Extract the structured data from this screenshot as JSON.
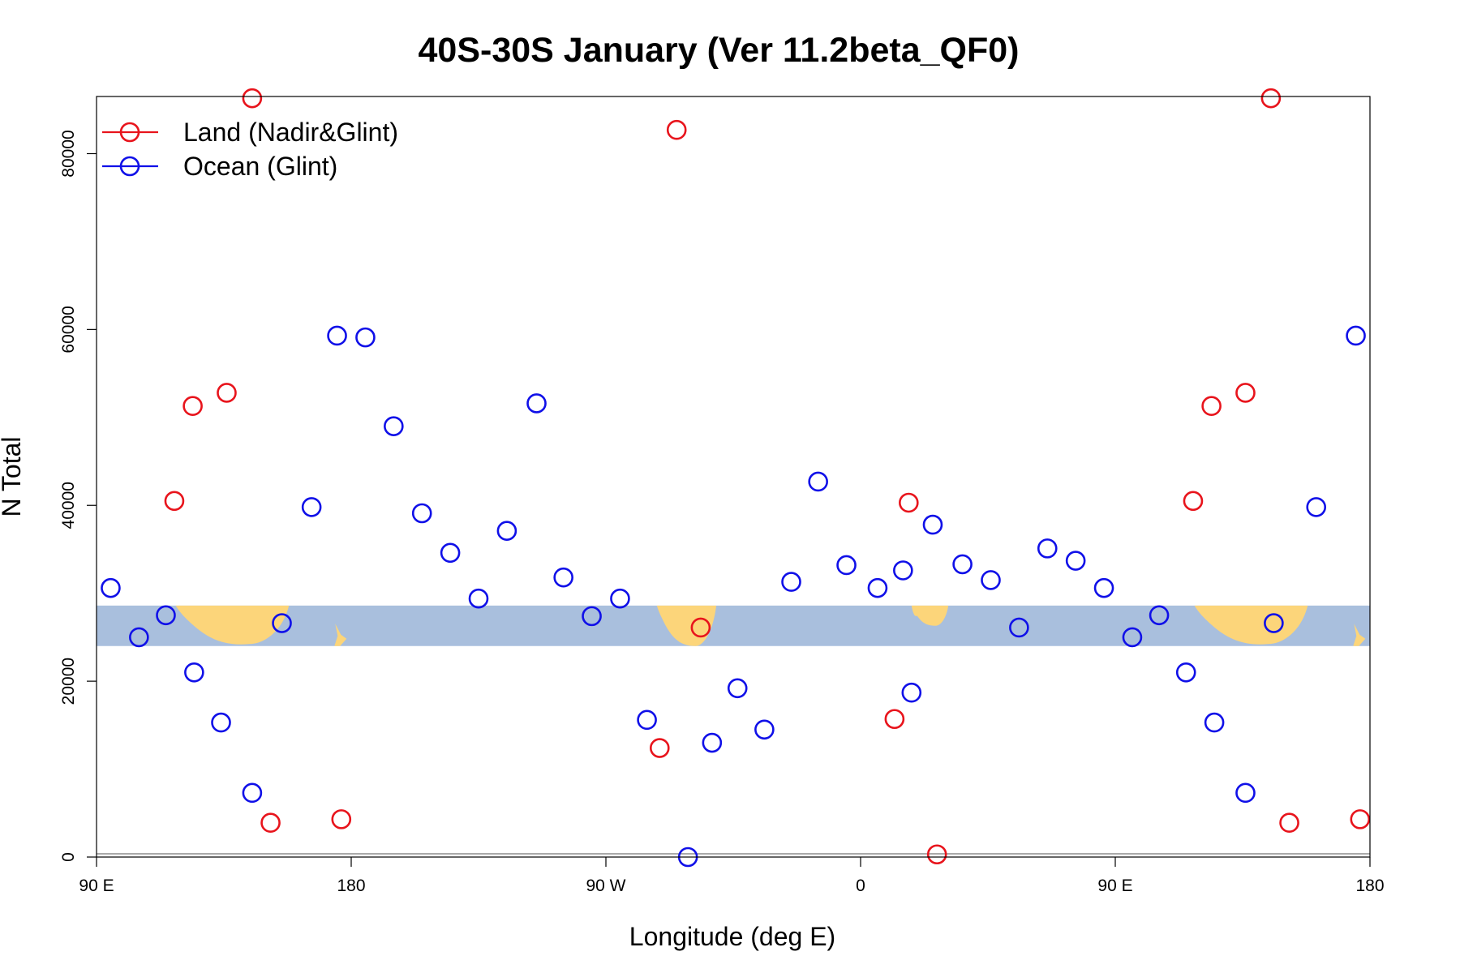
{
  "chart_data": {
    "type": "scatter",
    "title": "40S-30S January (Ver 11.2beta_QF0)",
    "xlabel": "Longitude (deg E)",
    "ylabel": "N Total",
    "xlim": [
      -5,
      445
    ],
    "ylim": [
      0,
      86500
    ],
    "x_ticks": [
      {
        "value": -5,
        "label": "90 E"
      },
      {
        "value": 85,
        "label": "180"
      },
      {
        "value": 175,
        "label": "90 W"
      },
      {
        "value": 265,
        "label": "0"
      },
      {
        "value": 355,
        "label": "90 E"
      },
      {
        "value": 445,
        "label": "180"
      }
    ],
    "y_ticks": [
      {
        "value": 0,
        "label": "0"
      },
      {
        "value": 20000,
        "label": "20000"
      },
      {
        "value": 40000,
        "label": "40000"
      },
      {
        "value": 60000,
        "label": "60000"
      },
      {
        "value": 80000,
        "label": "80000"
      }
    ],
    "legend_position": "top-left",
    "colors": {
      "land": "#e8141c",
      "ocean": "#1010e8",
      "map_ocean": "#a9bfdd",
      "map_land": "#fcd57a"
    },
    "map_band": {
      "y_range": [
        24000,
        28600
      ]
    },
    "series": [
      {
        "name": "Land (Nadir&Glint)",
        "color": "#e8141c",
        "points": [
          {
            "x": 22.5,
            "y": 40500
          },
          {
            "x": 29,
            "y": 51300
          },
          {
            "x": 41,
            "y": 52800
          },
          {
            "x": 50,
            "y": 86300
          },
          {
            "x": 56.5,
            "y": 3900
          },
          {
            "x": 81.5,
            "y": 4300
          },
          {
            "x": 200,
            "y": 82700
          },
          {
            "x": 194,
            "y": 12400
          },
          {
            "x": 208.5,
            "y": 26100
          },
          {
            "x": 282,
            "y": 40300
          },
          {
            "x": 277,
            "y": 15700
          },
          {
            "x": 292,
            "y": 300
          },
          {
            "x": 382.5,
            "y": 40500
          },
          {
            "x": 389,
            "y": 51300
          },
          {
            "x": 401,
            "y": 52800
          },
          {
            "x": 410,
            "y": 86300
          },
          {
            "x": 416.5,
            "y": 3900
          },
          {
            "x": 441.5,
            "y": 4300
          }
        ]
      },
      {
        "name": "Ocean (Glint)",
        "color": "#1010e8",
        "points": [
          {
            "x": 0,
            "y": 30600
          },
          {
            "x": 10,
            "y": 25000
          },
          {
            "x": 19.5,
            "y": 27500
          },
          {
            "x": 29.5,
            "y": 21000
          },
          {
            "x": 39,
            "y": 15300
          },
          {
            "x": 50,
            "y": 7300
          },
          {
            "x": 60.5,
            "y": 26600
          },
          {
            "x": 71,
            "y": 39800
          },
          {
            "x": 80,
            "y": 59300
          },
          {
            "x": 90,
            "y": 59100
          },
          {
            "x": 100,
            "y": 49000
          },
          {
            "x": 110,
            "y": 39100
          },
          {
            "x": 120,
            "y": 34600
          },
          {
            "x": 130,
            "y": 29400
          },
          {
            "x": 140,
            "y": 37100
          },
          {
            "x": 150.5,
            "y": 51600
          },
          {
            "x": 160,
            "y": 31800
          },
          {
            "x": 170,
            "y": 27400
          },
          {
            "x": 180,
            "y": 29400
          },
          {
            "x": 189.5,
            "y": 15600
          },
          {
            "x": 204,
            "y": 0
          },
          {
            "x": 212.5,
            "y": 13000
          },
          {
            "x": 221.5,
            "y": 19200
          },
          {
            "x": 231,
            "y": 14500
          },
          {
            "x": 240.5,
            "y": 31300
          },
          {
            "x": 250,
            "y": 42700
          },
          {
            "x": 260,
            "y": 33200
          },
          {
            "x": 271,
            "y": 30600
          },
          {
            "x": 280,
            "y": 32600
          },
          {
            "x": 283,
            "y": 18700
          },
          {
            "x": 290.5,
            "y": 37800
          },
          {
            "x": 301,
            "y": 33300
          },
          {
            "x": 311,
            "y": 31500
          },
          {
            "x": 321,
            "y": 26100
          },
          {
            "x": 331,
            "y": 35100
          },
          {
            "x": 341,
            "y": 33700
          },
          {
            "x": 351,
            "y": 30600
          },
          {
            "x": 361,
            "y": 25000
          },
          {
            "x": 370.5,
            "y": 27500
          },
          {
            "x": 380,
            "y": 21000
          },
          {
            "x": 390,
            "y": 15300
          },
          {
            "x": 401,
            "y": 7300
          },
          {
            "x": 411,
            "y": 26600
          },
          {
            "x": 426,
            "y": 39800
          },
          {
            "x": 440,
            "y": 59300
          }
        ]
      }
    ]
  }
}
